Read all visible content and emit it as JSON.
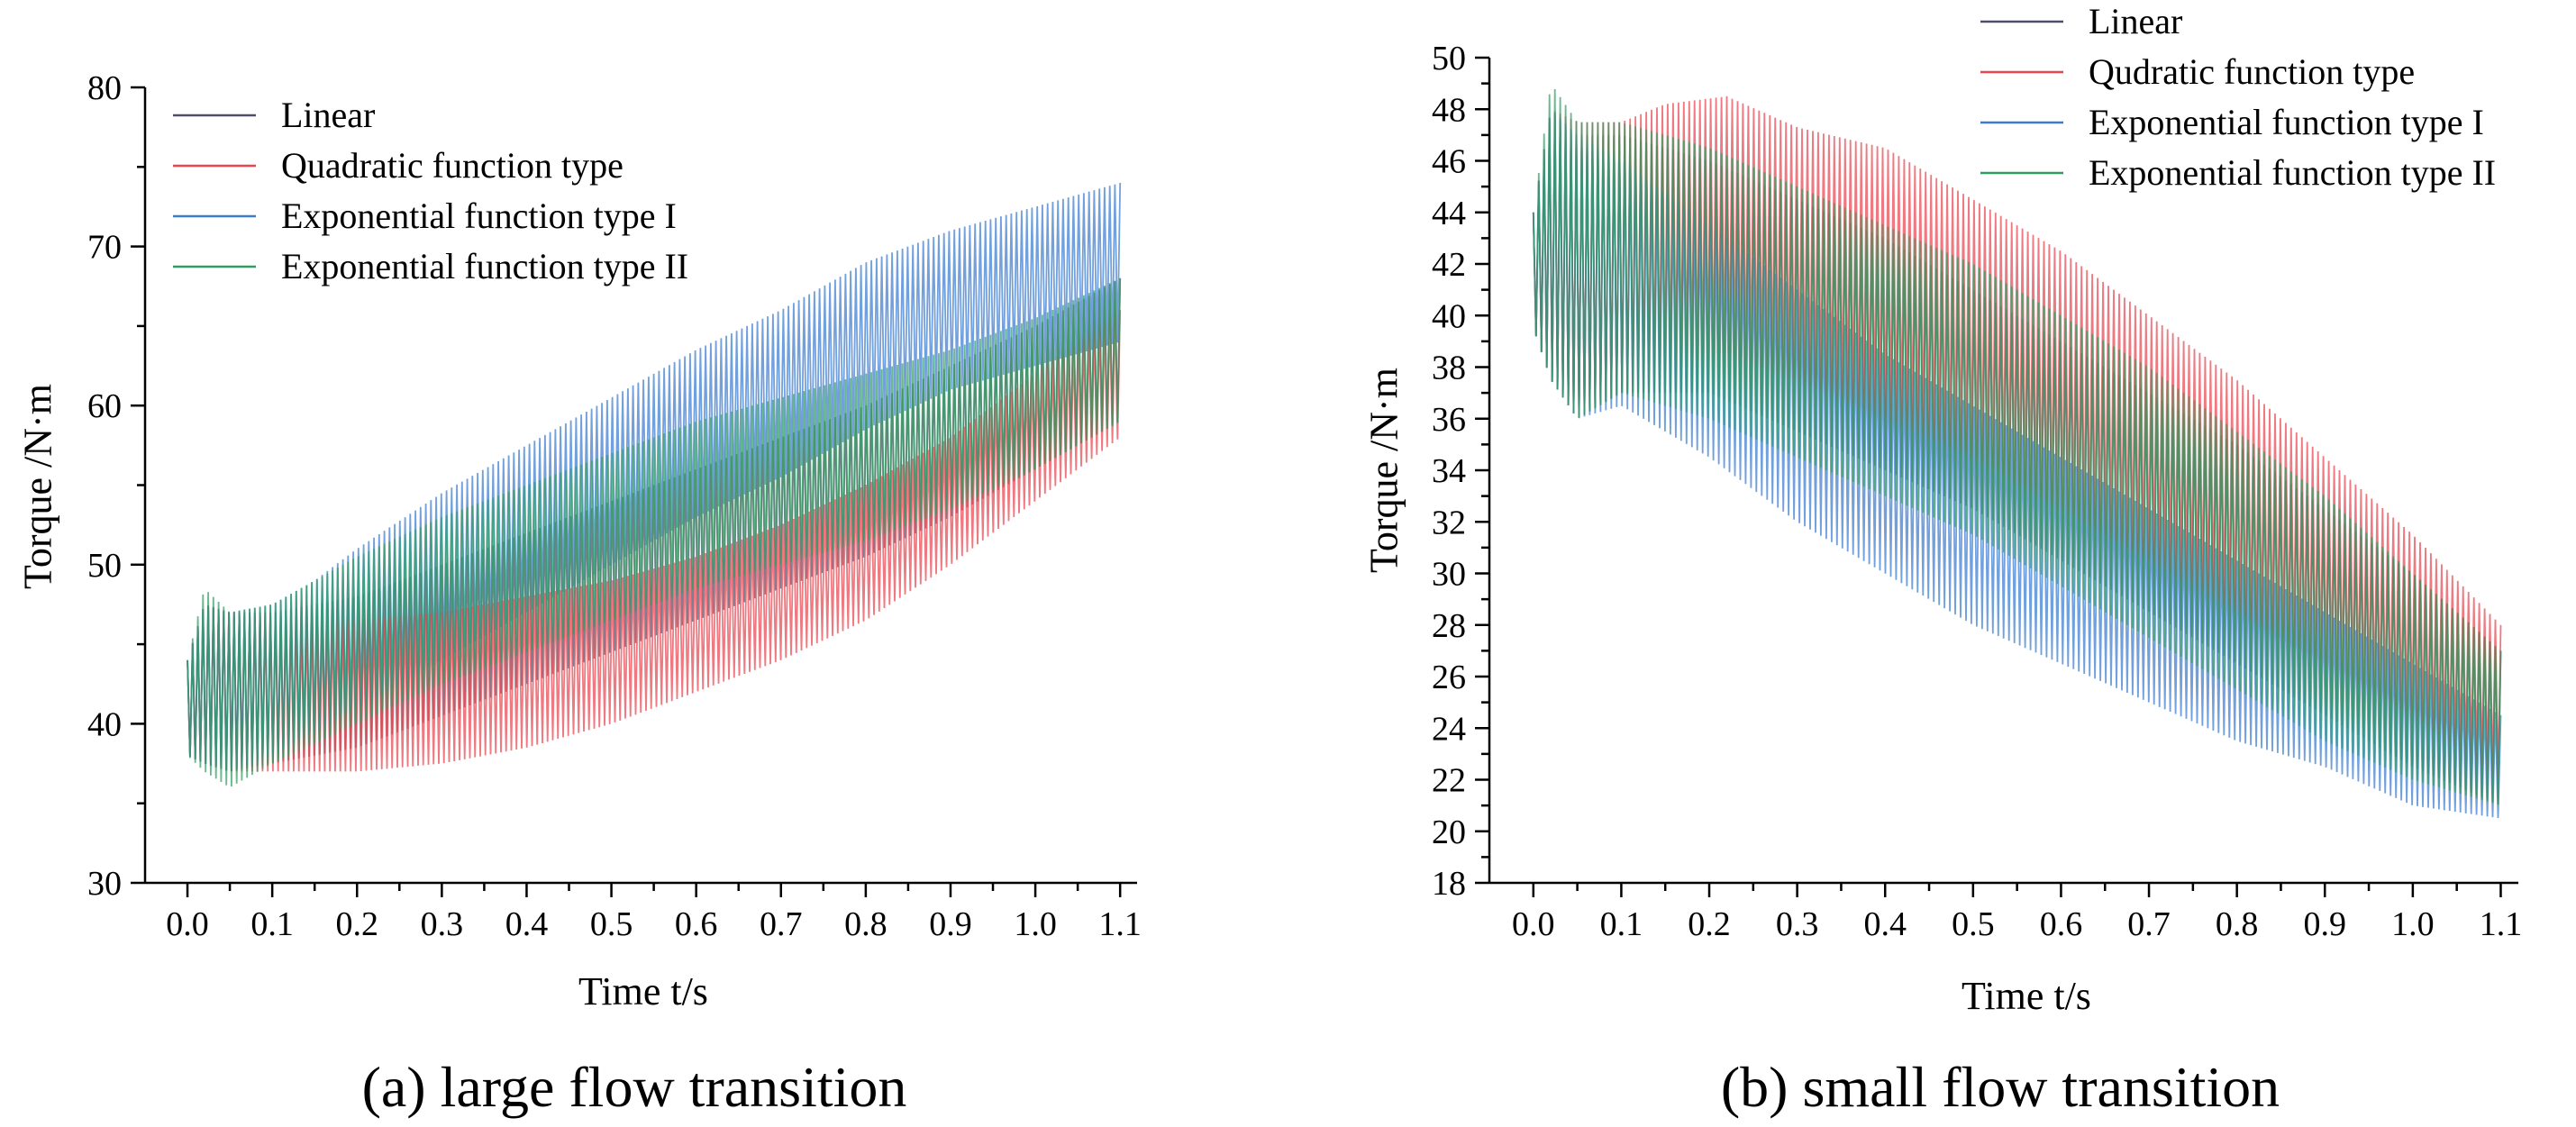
{
  "chart_data": [
    {
      "type": "line",
      "caption": "(a) large flow transition",
      "xlabel": "Time  t/s",
      "ylabel": "Torque  /N·m",
      "xlim": [
        -0.05,
        1.12
      ],
      "ylim": [
        30,
        80
      ],
      "x_ticks": [
        0.0,
        0.1,
        0.2,
        0.3,
        0.4,
        0.5,
        0.6,
        0.7,
        0.8,
        0.9,
        1.0,
        1.1
      ],
      "x_tick_labels": [
        "0.0",
        "0.1",
        "0.2",
        "0.3",
        "0.4",
        "0.5",
        "0.6",
        "0.7",
        "0.8",
        "0.9",
        "1.0",
        "1.1"
      ],
      "y_ticks": [
        30,
        40,
        50,
        60,
        70,
        80
      ],
      "y_tick_labels": [
        "30",
        "40",
        "50",
        "60",
        "70",
        "80"
      ],
      "grid": false,
      "legend_position": "top-left",
      "oscillation_cycles": 180,
      "series": [
        {
          "name": "Linear",
          "color": "#4e4e6a",
          "t": [
            0.0,
            0.02,
            0.05,
            0.1,
            0.2,
            0.3,
            0.4,
            0.5,
            0.6,
            0.7,
            0.8,
            0.9,
            1.0,
            1.1
          ],
          "upper": [
            44,
            47.5,
            47,
            47,
            48,
            50,
            52,
            54,
            56,
            58,
            60,
            62.5,
            65,
            68
          ],
          "lower": [
            38,
            37.5,
            37,
            37.5,
            38.5,
            40.5,
            42.5,
            44.5,
            46.5,
            48.5,
            50.5,
            53,
            56,
            59
          ]
        },
        {
          "name": "Quadratic function type",
          "color": "#e8454f",
          "t": [
            0.0,
            0.02,
            0.05,
            0.1,
            0.2,
            0.3,
            0.4,
            0.5,
            0.6,
            0.7,
            0.8,
            0.9,
            1.0,
            1.1
          ],
          "upper": [
            44,
            47.5,
            47,
            46.5,
            46.5,
            47,
            48,
            49,
            50.5,
            52.5,
            55,
            58,
            62,
            66
          ],
          "lower": [
            38,
            37.5,
            37,
            37,
            37,
            37.5,
            38.5,
            40,
            42,
            44,
            46.5,
            50,
            54,
            58
          ]
        },
        {
          "name": "Exponential function type  I",
          "color": "#3b7bd0",
          "t": [
            0.0,
            0.02,
            0.05,
            0.1,
            0.15,
            0.2,
            0.3,
            0.4,
            0.5,
            0.6,
            0.7,
            0.8,
            0.9,
            1.0,
            1.1
          ],
          "upper": [
            44,
            47.5,
            47,
            47.5,
            49,
            51,
            54.5,
            57.5,
            60.5,
            63.5,
            66,
            69,
            71,
            72.5,
            74
          ],
          "lower": [
            38,
            37.5,
            37,
            38,
            39.5,
            41,
            44,
            47,
            50,
            53,
            55.5,
            58.5,
            61,
            62.5,
            64
          ]
        },
        {
          "name": "Exponential function type  II",
          "color": "#2f9e61",
          "t": [
            0.0,
            0.02,
            0.05,
            0.1,
            0.2,
            0.3,
            0.4,
            0.5,
            0.6,
            0.7,
            0.8,
            0.9,
            1.0,
            1.1
          ],
          "upper": [
            44,
            48.5,
            47,
            47.5,
            50.5,
            53,
            55,
            57,
            59,
            60.5,
            62,
            63.5,
            65.5,
            68
          ],
          "lower": [
            38,
            37,
            36,
            37.5,
            40,
            42.5,
            44.5,
            46.5,
            48.5,
            50,
            51.5,
            53.5,
            56,
            59
          ]
        }
      ]
    },
    {
      "type": "line",
      "caption": "(b) small flow transition",
      "xlabel": "Time  t/s",
      "ylabel": "Torque  /N·m",
      "xlim": [
        -0.05,
        1.12
      ],
      "ylim": [
        18,
        50
      ],
      "x_ticks": [
        0.0,
        0.1,
        0.2,
        0.3,
        0.4,
        0.5,
        0.6,
        0.7,
        0.8,
        0.9,
        1.0,
        1.1
      ],
      "x_tick_labels": [
        "0.0",
        "0.1",
        "0.2",
        "0.3",
        "0.4",
        "0.5",
        "0.6",
        "0.7",
        "0.8",
        "0.9",
        "1.0",
        "1.1"
      ],
      "y_ticks": [
        18,
        20,
        22,
        24,
        26,
        28,
        30,
        32,
        34,
        36,
        38,
        40,
        42,
        44,
        46,
        48,
        50
      ],
      "y_tick_labels": [
        "18",
        "20",
        "22",
        "24",
        "26",
        "28",
        "30",
        "32",
        "34",
        "36",
        "38",
        "40",
        "42",
        "44",
        "46",
        "48",
        "50"
      ],
      "grid": false,
      "legend_position": "top-right",
      "oscillation_cycles": 180,
      "series": [
        {
          "name": "Linear",
          "color": "#4e4e6a",
          "t": [
            0.0,
            0.02,
            0.05,
            0.1,
            0.2,
            0.3,
            0.4,
            0.5,
            0.6,
            0.7,
            0.8,
            0.9,
            1.0,
            1.1
          ],
          "upper": [
            44,
            48,
            47,
            47,
            46,
            44.5,
            43,
            41,
            39,
            37,
            35,
            32.5,
            30,
            27
          ],
          "lower": [
            39.5,
            37.5,
            36,
            37,
            37,
            35.5,
            34,
            32.5,
            30.5,
            28.5,
            26.5,
            24.5,
            22.5,
            21
          ]
        },
        {
          "name": "Qudratic function type",
          "color": "#e8454f",
          "t": [
            0.0,
            0.02,
            0.05,
            0.1,
            0.15,
            0.22,
            0.3,
            0.4,
            0.5,
            0.6,
            0.7,
            0.8,
            0.9,
            1.0,
            1.1
          ],
          "upper": [
            44,
            48,
            47.5,
            47.5,
            48.2,
            48.5,
            47.3,
            46.5,
            44.5,
            42.5,
            40,
            37.5,
            34.5,
            31.5,
            28
          ],
          "lower": [
            39.5,
            37.5,
            36,
            37,
            38,
            38.5,
            37.5,
            36,
            34.5,
            32.5,
            30.5,
            28.5,
            26.5,
            24.5,
            22
          ]
        },
        {
          "name": "Exponential function type I",
          "color": "#3b7bd0",
          "t": [
            0.0,
            0.02,
            0.05,
            0.1,
            0.2,
            0.3,
            0.4,
            0.5,
            0.6,
            0.7,
            0.8,
            0.9,
            1.0,
            1.1
          ],
          "upper": [
            44,
            48,
            47,
            46,
            43.5,
            41,
            38.5,
            36.5,
            34.5,
            32.5,
            30.5,
            28.5,
            26.5,
            24.5
          ],
          "lower": [
            39.5,
            37.5,
            36,
            36.5,
            34.5,
            32,
            30,
            28,
            26.5,
            25,
            23.5,
            22.5,
            21,
            20.5
          ]
        },
        {
          "name": "Exponential function type II",
          "color": "#2f9e61",
          "t": [
            0.0,
            0.02,
            0.05,
            0.1,
            0.2,
            0.3,
            0.4,
            0.5,
            0.6,
            0.7,
            0.8,
            0.9,
            1.0,
            1.1
          ],
          "upper": [
            44,
            49,
            47.5,
            47.5,
            46.5,
            45,
            43.5,
            42,
            40,
            38,
            35.5,
            33,
            30,
            27
          ],
          "lower": [
            39.5,
            37.5,
            36,
            37,
            36,
            34.5,
            33,
            31.5,
            29.5,
            27.5,
            25.5,
            23.5,
            22,
            21
          ]
        }
      ]
    }
  ]
}
